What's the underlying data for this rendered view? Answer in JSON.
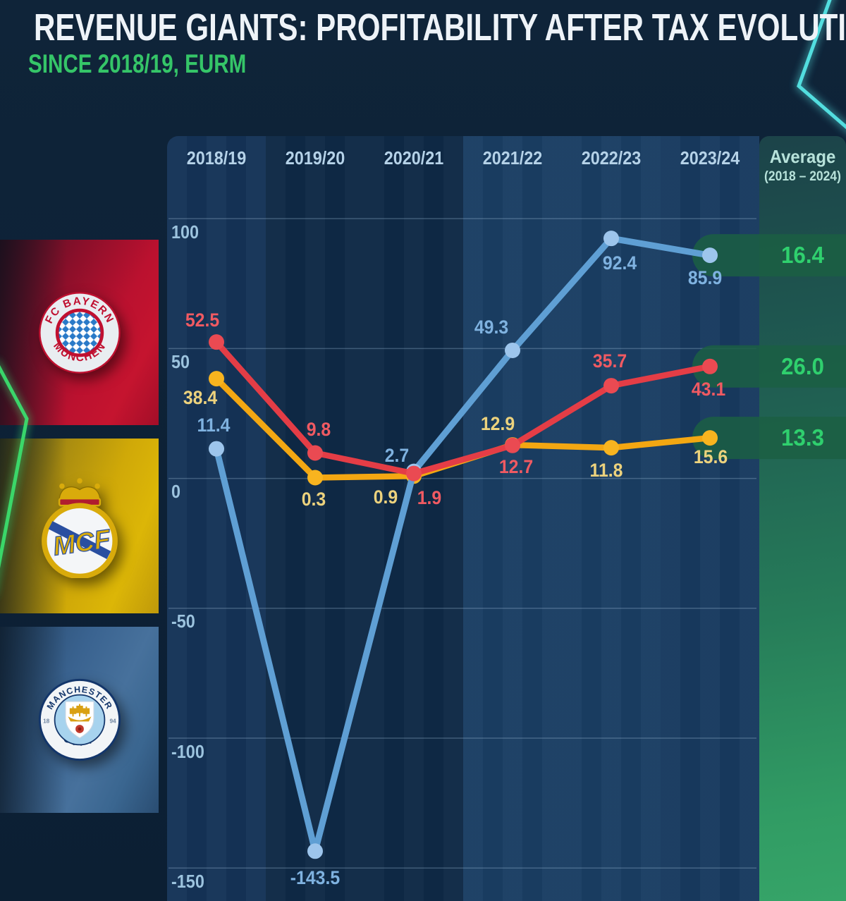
{
  "header": {
    "title": "REVENUE GIANTS: PROFITABILITY AFTER TAX EVOLUTION",
    "subtitle": "SINCE 2018/19, EURM"
  },
  "clubs": [
    {
      "name": "FC Bayern München",
      "crest_top": "FC BAYERN",
      "crest_bottom": "MÜNCHEN",
      "panel_color": "#b01030"
    },
    {
      "name": "Real Madrid",
      "monogram": "MCF",
      "panel_color": "#d2a90a"
    },
    {
      "name": "Manchester City",
      "crest_top": "MANCHESTER",
      "crest_bottom": "CITY",
      "crest_left": "18",
      "crest_right": "94",
      "panel_color": "#3c6690"
    }
  ],
  "chart_data": {
    "type": "line",
    "x_categories": [
      "2018/19",
      "2019/20",
      "2020/21",
      "2021/22",
      "2022/23",
      "2023/24"
    ],
    "average_header": {
      "line1": "Average",
      "line2": "(2018 – 2024)"
    },
    "yticks": [
      "100",
      "50",
      "0",
      "-50",
      "-100",
      "-150"
    ],
    "ylim": [
      -160,
      115
    ],
    "grid": true,
    "legend_position": "left-club-logos",
    "series": [
      {
        "key": "bayern",
        "name": "FC Bayern München",
        "color": "#e43d46",
        "dot_color": "#ea4a52",
        "label_color": "#f05a62",
        "values": [
          52.5,
          9.8,
          1.9,
          12.7,
          35.7,
          43.1
        ],
        "average": "26.0"
      },
      {
        "key": "real-madrid",
        "name": "Real Madrid",
        "color": "#f3a712",
        "dot_color": "#f8b41f",
        "label_color": "#ecd27d",
        "values": [
          38.4,
          0.3,
          0.9,
          12.9,
          11.8,
          15.6
        ],
        "average": "13.3"
      },
      {
        "key": "man-city",
        "name": "Manchester City",
        "color": "#5f9fd4",
        "dot_color": "#9dc5ec",
        "label_color": "#7fb2e0",
        "values": [
          11.4,
          -143.5,
          2.7,
          49.3,
          92.4,
          85.9
        ],
        "average": "16.4"
      }
    ]
  },
  "colors": {
    "background": "#0e2238",
    "title": "#eef3f8",
    "subtitle_green": "#35c568",
    "average_green": "#2fd06e",
    "pill_green": "#1b5f43",
    "grid_line": "#9fc0d8",
    "neon_green": "#3ae06e",
    "neon_cyan": "#57e8e8"
  }
}
